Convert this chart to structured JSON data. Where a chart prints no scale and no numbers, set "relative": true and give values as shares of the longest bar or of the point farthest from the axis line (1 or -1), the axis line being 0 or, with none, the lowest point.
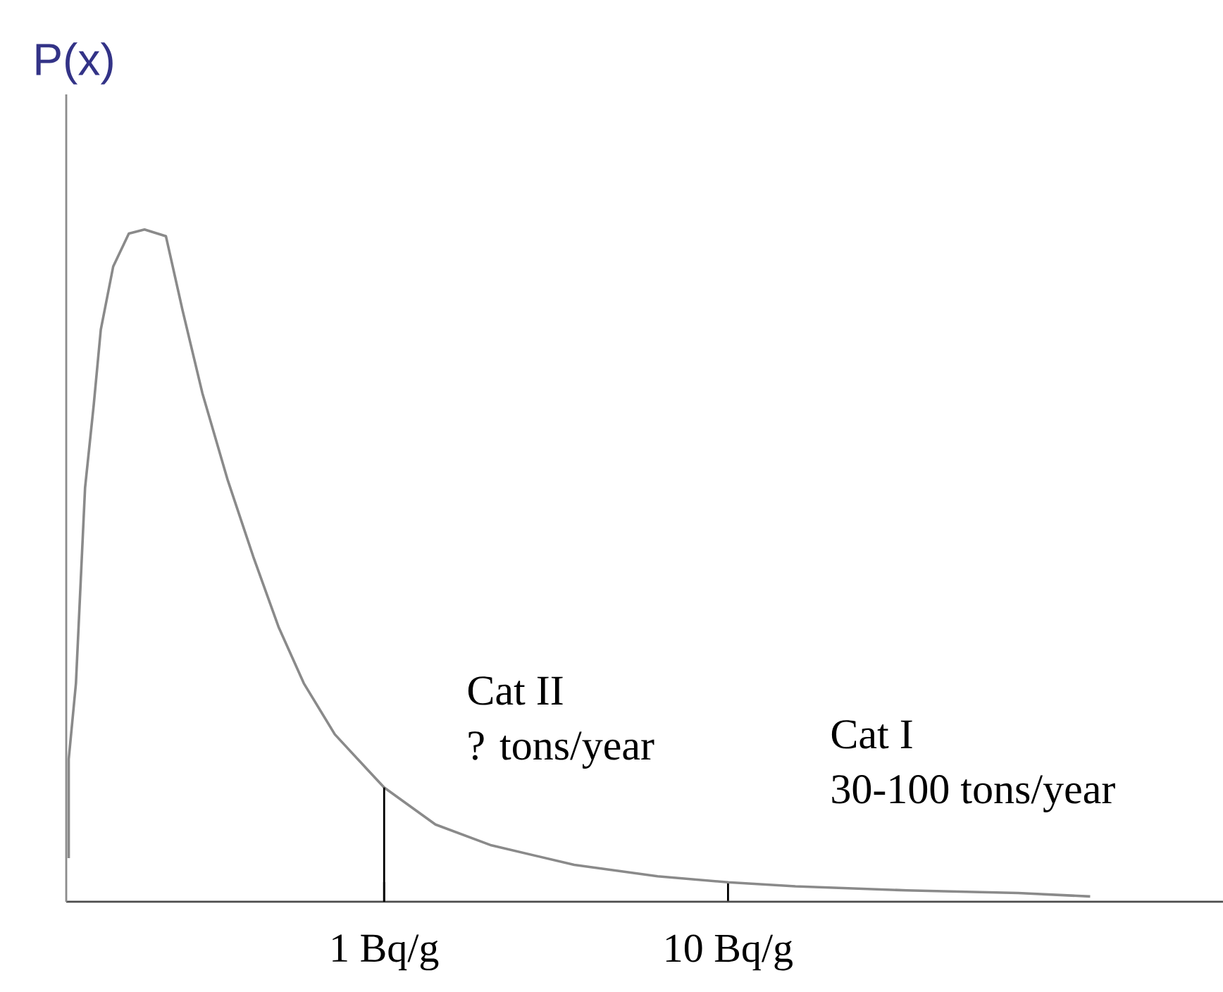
{
  "chart_data": {
    "type": "line",
    "relative": true,
    "log": "x",
    "ylabel": "P(x)",
    "xlim": [
      0.119,
      275
    ],
    "xticks": [
      {
        "value": 1,
        "label": "1 Bq/g"
      },
      {
        "value": 10,
        "label": "10 Bq/g"
      }
    ],
    "series": [
      {
        "color": "#8a8a8a",
        "x": [
          0.121,
          0.121,
          0.127,
          0.135,
          0.143,
          0.15,
          0.163,
          0.181,
          0.201,
          0.232,
          0.259,
          0.296,
          0.351,
          0.416,
          0.493,
          0.584,
          0.719,
          0.893,
          1,
          1.41,
          2.05,
          3.57,
          6.24,
          10,
          15.7,
          33.1,
          69.8,
          113
        ],
        "values": [
          0.065,
          0.212,
          0.325,
          0.616,
          0.738,
          0.851,
          0.945,
          0.994,
          1,
          0.99,
          0.881,
          0.757,
          0.627,
          0.514,
          0.409,
          0.325,
          0.249,
          0.197,
          0.17,
          0.115,
          0.084,
          0.055,
          0.038,
          0.029,
          0.023,
          0.017,
          0.013,
          0.008
        ]
      }
    ],
    "ref_lines": [
      {
        "axis": "x",
        "value": 1,
        "color": "#000000"
      }
    ],
    "annotations": [
      "Cat II",
      "? tons/year",
      "Cat I",
      "30-100 tons/year"
    ]
  }
}
